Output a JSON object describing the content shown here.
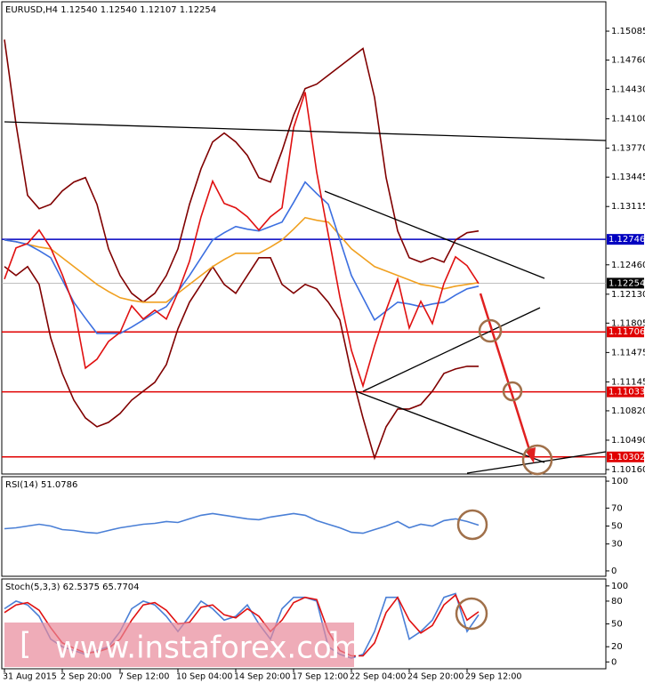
{
  "chart_data": [
    {
      "type": "line",
      "title": "EURUSD,H4  1.12540 1.12540 1.12107 1.12254",
      "categories": [
        "31 Aug 2015",
        null,
        null,
        null,
        null,
        "2 Sep 20:00",
        null,
        null,
        null,
        null,
        "7 Sep 12:00",
        null,
        null,
        null,
        null,
        "10 Sep 04:00",
        null,
        null,
        null,
        null,
        "14 Sep 20:00",
        null,
        null,
        null,
        null,
        "17 Sep 12:00",
        null,
        null,
        null,
        null,
        "22 Sep 04:00",
        null,
        null,
        null,
        null,
        "24 Sep 20:00",
        null,
        null,
        null,
        null,
        "29 Sep 12:00",
        null
      ],
      "series": [
        {
          "color": "#800000",
          "values": [
            1.1499,
            1.1404,
            1.1324,
            1.1309,
            1.1314,
            1.1329,
            1.1339,
            1.1344,
            1.1314,
            1.1264,
            1.1234,
            1.1214,
            1.1204,
            1.1214,
            1.1234,
            1.1264,
            1.1314,
            1.1354,
            1.1384,
            1.1394,
            1.1384,
            1.1369,
            1.1344,
            1.1339,
            1.1374,
            1.1414,
            1.1444,
            1.1449,
            1.1459,
            1.1469,
            1.1479,
            1.1489,
            1.1434,
            1.1344,
            1.1284,
            1.1254,
            1.1249,
            1.1254,
            1.1249,
            1.1274,
            1.1282,
            1.1284
          ]
        },
        {
          "color": "#800000",
          "values": [
            1.1244,
            1.1234,
            1.1244,
            1.1224,
            1.1164,
            1.1124,
            1.1094,
            1.1074,
            1.1064,
            1.1069,
            1.1079,
            1.1094,
            1.1104,
            1.1114,
            1.1134,
            1.1174,
            1.1204,
            1.1224,
            1.1244,
            1.1224,
            1.1214,
            1.1234,
            1.1254,
            1.1254,
            1.1224,
            1.1214,
            1.1224,
            1.1219,
            1.1204,
            1.1184,
            1.1124,
            1.1074,
            1.1029,
            1.1064,
            1.1084,
            1.1084,
            1.1089,
            1.1104,
            1.1124,
            1.1129,
            1.1132,
            1.1132
          ]
        },
        {
          "color": "#f0a020",
          "values": [
            1.1274,
            1.1272,
            1.1269,
            1.1266,
            1.1264,
            1.1254,
            1.1244,
            1.1234,
            1.1224,
            1.1216,
            1.1209,
            1.1206,
            1.1204,
            1.1204,
            1.1204,
            1.1214,
            1.1224,
            1.1234,
            1.1244,
            1.1252,
            1.1259,
            1.1259,
            1.1259,
            1.1266,
            1.1274,
            1.1286,
            1.1299,
            1.1296,
            1.1294,
            1.1279,
            1.1264,
            1.1254,
            1.1244,
            1.1239,
            1.1234,
            1.1229,
            1.1224,
            1.1222,
            1.1219,
            1.1222,
            1.1224,
            1.1226
          ]
        },
        {
          "color": "#3c6fe0",
          "values": [
            1.1274,
            1.1272,
            1.1269,
            1.1262,
            1.1254,
            1.1229,
            1.1204,
            1.1186,
            1.1169,
            1.1169,
            1.1169,
            1.1176,
            1.1184,
            1.1192,
            1.1199,
            1.1216,
            1.1234,
            1.1254,
            1.1274,
            1.1282,
            1.1289,
            1.1286,
            1.1284,
            1.1289,
            1.1294,
            1.1316,
            1.1339,
            1.1326,
            1.1314,
            1.1274,
            1.1234,
            1.1209,
            1.1184,
            1.1194,
            1.1204,
            1.1202,
            1.1199,
            1.1202,
            1.1204,
            1.1212,
            1.1219,
            1.1222
          ]
        },
        {
          "color": "#e01010",
          "values": [
            1.123,
            1.1265,
            1.127,
            1.1285,
            1.1265,
            1.1235,
            1.12,
            1.113,
            1.114,
            1.116,
            1.117,
            1.12,
            1.1185,
            1.1195,
            1.1185,
            1.1215,
            1.125,
            1.13,
            1.134,
            1.1315,
            1.131,
            1.13,
            1.1285,
            1.13,
            1.131,
            1.14,
            1.144,
            1.135,
            1.128,
            1.121,
            1.115,
            1.111,
            1.1155,
            1.1195,
            1.123,
            1.1175,
            1.1205,
            1.118,
            1.1225,
            1.1255,
            1.1245,
            1.1225
          ]
        }
      ],
      "ylim": [
        1.1011,
        1.15405
      ],
      "yticks": [
        1.15085,
        {
          "value": 1.1476,
          "label": "1.14760"
        },
        {
          "value": 1.1443,
          "label": "1.14430"
        },
        {
          "value": 1.141,
          "label": "1.14100"
        },
        {
          "value": 1.1377,
          "label": "1.13770"
        },
        1.13445,
        1.13115,
        {
          "value": 1.1246,
          "label": "1.12460"
        },
        {
          "value": 1.1213,
          "label": "1.12130"
        },
        1.11805,
        1.11475,
        1.11145,
        {
          "value": 1.1082,
          "label": "1.10820"
        },
        {
          "value": 1.1049,
          "label": "1.10490"
        },
        {
          "value": 1.1016,
          "label": "1.10160"
        }
      ],
      "hlines": [
        {
          "value": 1.12746,
          "color": "#0000c0"
        },
        {
          "value": 1.11706,
          "color": "#e00000"
        },
        {
          "value": 1.11033,
          "color": "#e00000"
        },
        {
          "value": 1.10302,
          "color": "#e00000"
        }
      ],
      "current": {
        "value": 1.12254,
        "color": "#000000"
      }
    },
    {
      "type": "line",
      "title": "RSI(14) 51.0786",
      "series": [
        {
          "color": "#4a7fd6",
          "values": [
            47,
            48,
            50,
            52,
            50,
            46,
            45,
            43,
            42,
            45,
            48,
            50,
            52,
            53,
            55,
            54,
            58,
            62,
            64,
            62,
            60,
            58,
            57,
            60,
            62,
            64,
            62,
            56,
            52,
            48,
            43,
            42,
            46,
            50,
            55,
            48,
            52,
            50,
            56,
            58,
            55,
            51
          ]
        }
      ],
      "ylim": [
        -6,
        104
      ],
      "yticks": [
        100,
        70,
        50,
        30,
        0
      ]
    },
    {
      "type": "line",
      "title": "Stoch(5,3,3) 62.5375 65.7704",
      "series": [
        {
          "color": "#4a7fd6",
          "values": [
            70,
            80,
            75,
            60,
            30,
            20,
            15,
            10,
            15,
            20,
            40,
            70,
            80,
            75,
            60,
            40,
            60,
            80,
            70,
            55,
            60,
            75,
            50,
            30,
            70,
            85,
            85,
            80,
            20,
            10,
            5,
            10,
            40,
            85,
            85,
            30,
            40,
            55,
            85,
            90,
            40,
            62
          ]
        },
        {
          "color": "#e01010",
          "values": [
            65,
            75,
            78,
            68,
            45,
            25,
            18,
            12,
            13,
            18,
            30,
            55,
            75,
            78,
            68,
            50,
            52,
            72,
            75,
            62,
            58,
            70,
            60,
            40,
            55,
            78,
            85,
            82,
            40,
            15,
            8,
            8,
            25,
            65,
            85,
            55,
            38,
            48,
            75,
            88,
            55,
            66
          ]
        }
      ],
      "ylim": [
        -9,
        108
      ],
      "yticks": [
        100,
        80,
        50,
        20,
        0
      ]
    }
  ],
  "watermark": {
    "open": "[",
    "text": "www.instaforex.com",
    "close": "]"
  }
}
